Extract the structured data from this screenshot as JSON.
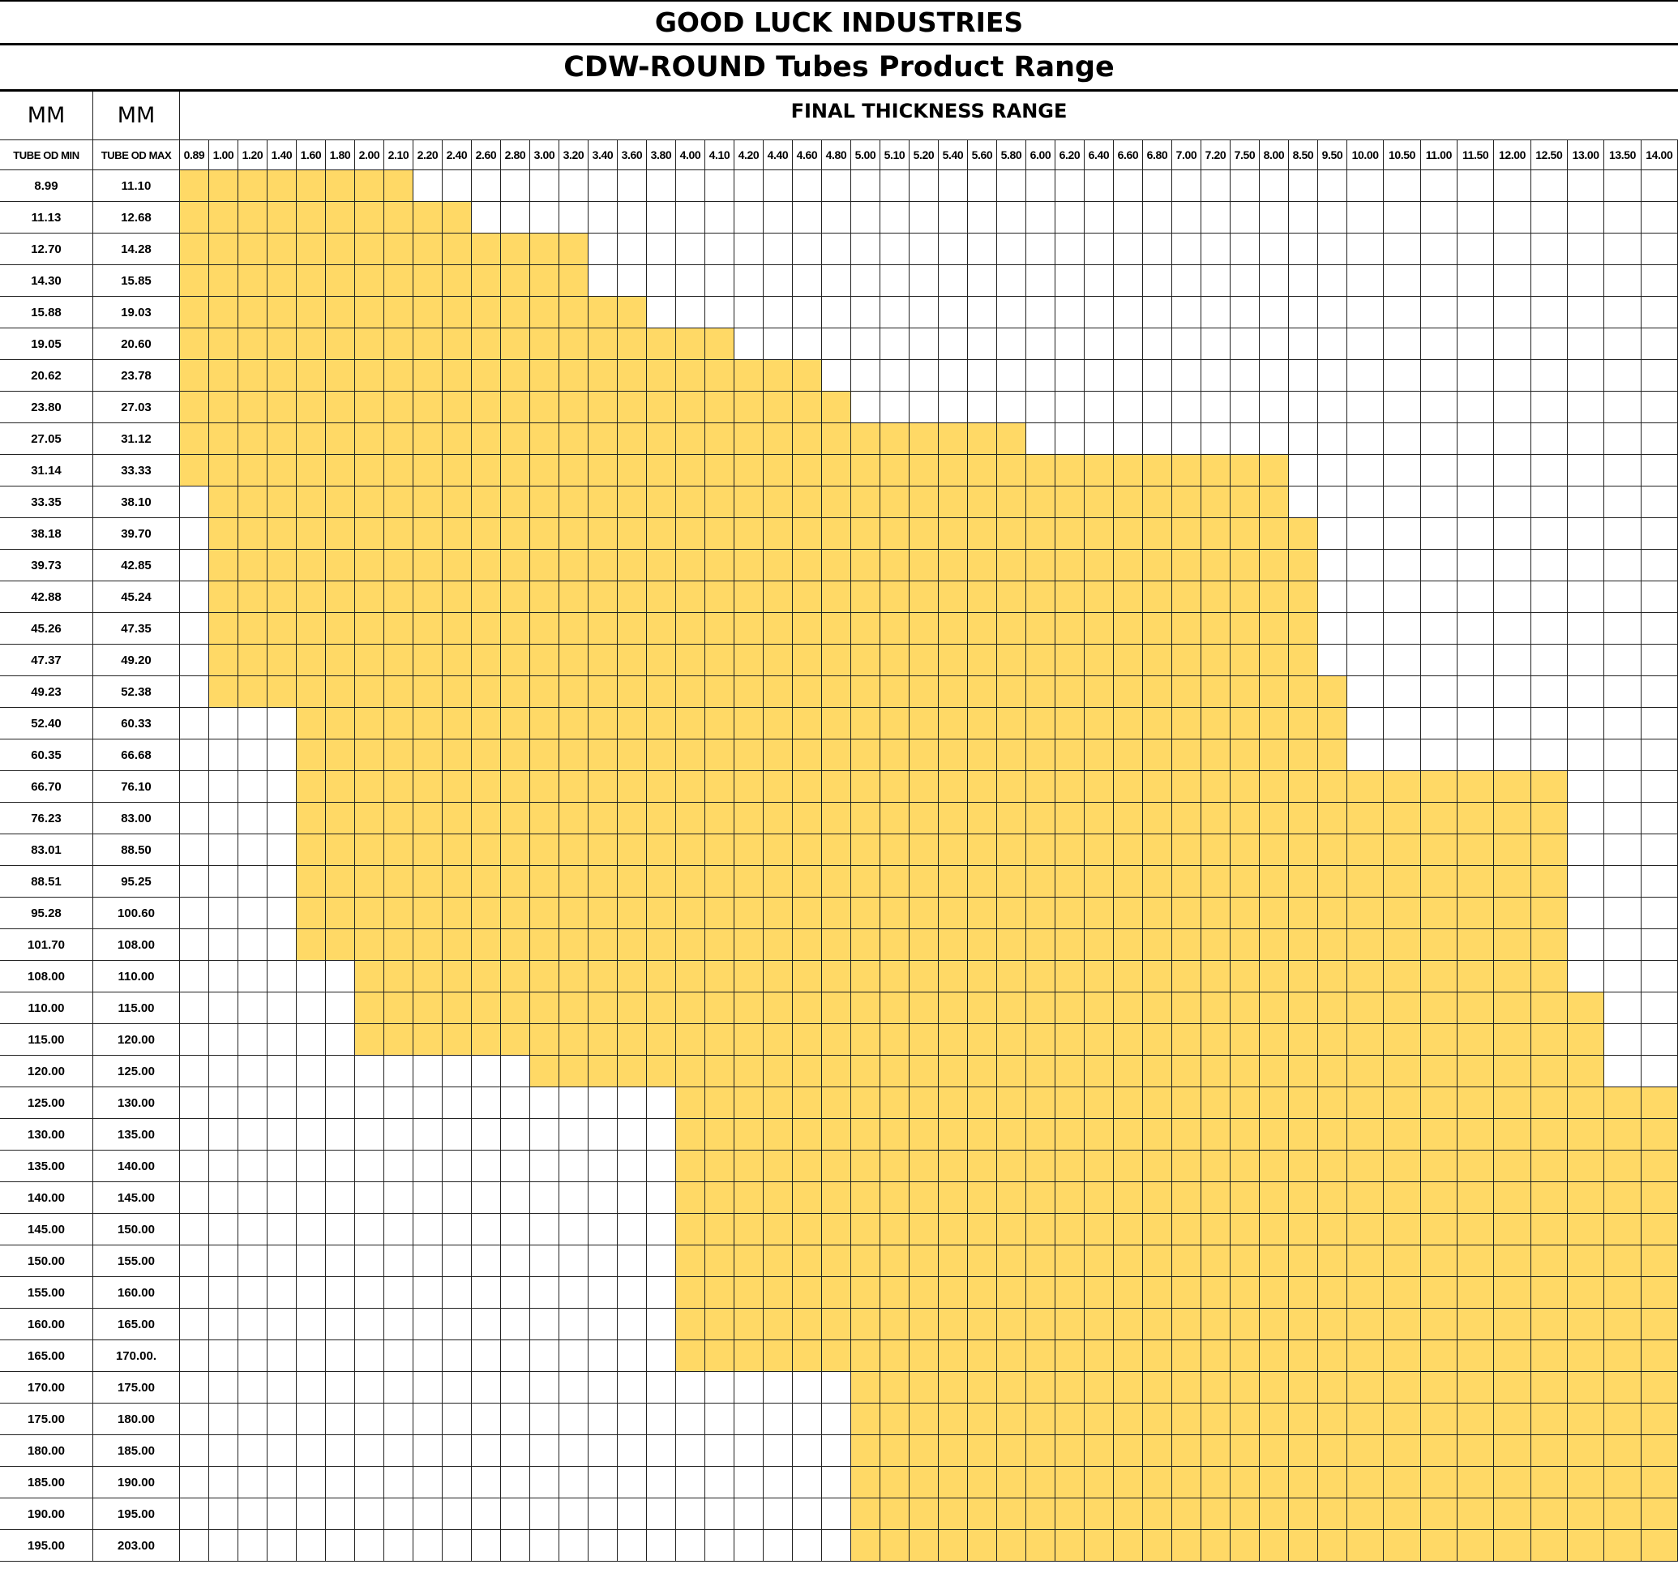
{
  "header": {
    "title": "GOOD LUCK INDUSTRIES",
    "subtitle": "CDW-ROUND Tubes Product Range"
  },
  "table": {
    "unit_labels": [
      "MM",
      "MM"
    ],
    "group_header": "FINAL THICKNESS RANGE",
    "columns": [
      "TUBE OD MIN",
      "TUBE OD MAX"
    ],
    "thicknesses": [
      "0.89",
      "1.00",
      "1.20",
      "1.40",
      "1.60",
      "1.80",
      "2.00",
      "2.10",
      "2.20",
      "2.40",
      "2.60",
      "2.80",
      "3.00",
      "3.20",
      "3.40",
      "3.60",
      "3.80",
      "4.00",
      "4.10",
      "4.20",
      "4.40",
      "4.60",
      "4.80",
      "5.00",
      "5.10",
      "5.20",
      "5.40",
      "5.60",
      "5.80",
      "6.00",
      "6.20",
      "6.40",
      "6.60",
      "6.80",
      "7.00",
      "7.20",
      "7.50",
      "8.00",
      "8.50",
      "9.50",
      "10.00",
      "10.50",
      "11.00",
      "11.50",
      "12.00",
      "12.50",
      "13.00",
      "13.50",
      "14.00"
    ],
    "fill_color": "#ffd966",
    "rows": [
      {
        "od_min": "8.99",
        "od_max": "11.10",
        "range": [
          "0.89",
          "2.10"
        ]
      },
      {
        "od_min": "11.13",
        "od_max": "12.68",
        "range": [
          "0.89",
          "2.40"
        ]
      },
      {
        "od_min": "12.70",
        "od_max": "14.28",
        "range": [
          "0.89",
          "3.20"
        ]
      },
      {
        "od_min": "14.30",
        "od_max": "15.85",
        "range": [
          "0.89",
          "3.20"
        ]
      },
      {
        "od_min": "15.88",
        "od_max": "19.03",
        "range": [
          "0.89",
          "3.60"
        ]
      },
      {
        "od_min": "19.05",
        "od_max": "20.60",
        "range": [
          "0.89",
          "4.10"
        ]
      },
      {
        "od_min": "20.62",
        "od_max": "23.78",
        "range": [
          "0.89",
          "4.60"
        ]
      },
      {
        "od_min": "23.80",
        "od_max": "27.03",
        "range": [
          "0.89",
          "4.80"
        ]
      },
      {
        "od_min": "27.05",
        "od_max": "31.12",
        "range": [
          "0.89",
          "5.80"
        ]
      },
      {
        "od_min": "31.14",
        "od_max": "33.33",
        "range": [
          "0.89",
          "8.00"
        ]
      },
      {
        "od_min": "33.35",
        "od_max": "38.10",
        "range": [
          "1.00",
          "8.00"
        ]
      },
      {
        "od_min": "38.18",
        "od_max": "39.70",
        "range": [
          "1.00",
          "8.50"
        ]
      },
      {
        "od_min": "39.73",
        "od_max": "42.85",
        "range": [
          "1.00",
          "8.50"
        ]
      },
      {
        "od_min": "42.88",
        "od_max": "45.24",
        "range": [
          "1.00",
          "8.50"
        ]
      },
      {
        "od_min": "45.26",
        "od_max": "47.35",
        "range": [
          "1.00",
          "8.50"
        ]
      },
      {
        "od_min": "47.37",
        "od_max": "49.20",
        "range": [
          "1.00",
          "8.50"
        ]
      },
      {
        "od_min": "49.23",
        "od_max": "52.38",
        "range": [
          "1.00",
          "9.50"
        ]
      },
      {
        "od_min": "52.40",
        "od_max": "60.33",
        "range": [
          "1.60",
          "9.50"
        ]
      },
      {
        "od_min": "60.35",
        "od_max": "66.68",
        "range": [
          "1.60",
          "9.50"
        ]
      },
      {
        "od_min": "66.70",
        "od_max": "76.10",
        "range": [
          "1.60",
          "12.50"
        ]
      },
      {
        "od_min": "76.23",
        "od_max": "83.00",
        "range": [
          "1.60",
          "12.50"
        ]
      },
      {
        "od_min": "83.01",
        "od_max": "88.50",
        "range": [
          "1.60",
          "12.50"
        ]
      },
      {
        "od_min": "88.51",
        "od_max": "95.25",
        "range": [
          "1.60",
          "12.50"
        ]
      },
      {
        "od_min": "95.28",
        "od_max": "100.60",
        "range": [
          "1.60",
          "12.50"
        ]
      },
      {
        "od_min": "101.70",
        "od_max": "108.00",
        "range": [
          "1.60",
          "12.50"
        ]
      },
      {
        "od_min": "108.00",
        "od_max": "110.00",
        "range": [
          "2.00",
          "12.50"
        ]
      },
      {
        "od_min": "110.00",
        "od_max": "115.00",
        "range": [
          "2.00",
          "13.00"
        ]
      },
      {
        "od_min": "115.00",
        "od_max": "120.00",
        "range": [
          "2.00",
          "13.00"
        ]
      },
      {
        "od_min": "120.00",
        "od_max": "125.00",
        "range": [
          "3.00",
          "13.00"
        ]
      },
      {
        "od_min": "125.00",
        "od_max": "130.00",
        "range": [
          "4.00",
          "14.00"
        ]
      },
      {
        "od_min": "130.00",
        "od_max": "135.00",
        "range": [
          "4.00",
          "14.00"
        ]
      },
      {
        "od_min": "135.00",
        "od_max": "140.00",
        "range": [
          "4.00",
          "14.00"
        ]
      },
      {
        "od_min": "140.00",
        "od_max": "145.00",
        "range": [
          "4.00",
          "14.00"
        ]
      },
      {
        "od_min": "145.00",
        "od_max": "150.00",
        "range": [
          "4.00",
          "14.00"
        ]
      },
      {
        "od_min": "150.00",
        "od_max": "155.00",
        "range": [
          "4.00",
          "14.00"
        ]
      },
      {
        "od_min": "155.00",
        "od_max": "160.00",
        "range": [
          "4.00",
          "14.00"
        ]
      },
      {
        "od_min": "160.00",
        "od_max": "165.00",
        "range": [
          "4.00",
          "14.00"
        ]
      },
      {
        "od_min": "165.00",
        "od_max": "170.00.",
        "range": [
          "4.00",
          "14.00"
        ]
      },
      {
        "od_min": "170.00",
        "od_max": "175.00",
        "range": [
          "5.00",
          "14.00"
        ]
      },
      {
        "od_min": "175.00",
        "od_max": "180.00",
        "range": [
          "5.00",
          "14.00"
        ]
      },
      {
        "od_min": "180.00",
        "od_max": "185.00",
        "range": [
          "5.00",
          "14.00"
        ]
      },
      {
        "od_min": "185.00",
        "od_max": "190.00",
        "range": [
          "5.00",
          "14.00"
        ]
      },
      {
        "od_min": "190.00",
        "od_max": "195.00",
        "range": [
          "5.00",
          "14.00"
        ]
      },
      {
        "od_min": "195.00",
        "od_max": "203.00",
        "range": [
          "5.00",
          "14.00"
        ]
      }
    ]
  }
}
